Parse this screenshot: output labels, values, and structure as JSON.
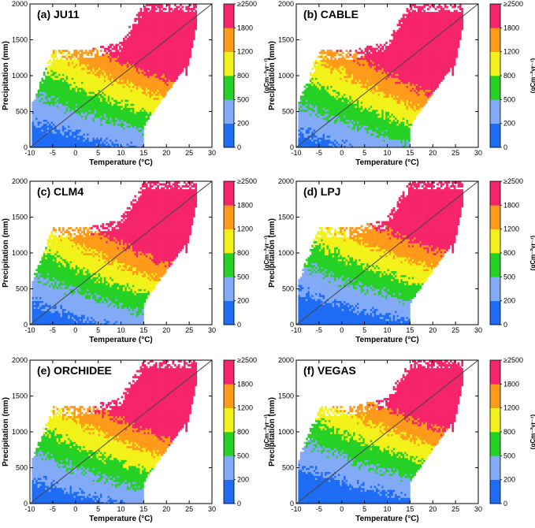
{
  "figure": {
    "temperature_label": "Temperature (",
    "temperature_unit": "°C)",
    "precipitation_label": "Precipitation (mm)",
    "colorbar_unit": "(gCm⁻²yr⁻¹)"
  },
  "chart_data": [
    {
      "type": "heatmap",
      "title": "(a) JU11",
      "xlabel": "Temperature (°C)",
      "ylabel": "Precipitation (mm)",
      "xlim": [
        -10,
        30
      ],
      "ylim": [
        0,
        2000
      ],
      "xticks": [
        -10,
        -5,
        0,
        5,
        10,
        15,
        20,
        25,
        30
      ],
      "yticks": [
        0,
        500,
        1000,
        1500,
        2000
      ],
      "colorbar": {
        "levels": [
          0,
          200,
          500,
          800,
          1200,
          1800,
          2500
        ],
        "tick_labels": [
          "0",
          "200",
          "500",
          "800",
          "1200",
          "1800",
          "≥2500"
        ],
        "colors": [
          "#1f6cf5",
          "#82aaf7",
          "#26d126",
          "#f2f21a",
          "#ff9a1a",
          "#f5246b"
        ],
        "unit": "(gCm⁻²yr⁻¹)"
      },
      "diagonal_line": true
    },
    {
      "type": "heatmap",
      "title": "(b) CABLE",
      "xlabel": "Temperature (°C)",
      "ylabel": "Precipitation (mm)",
      "xlim": [
        -10,
        30
      ],
      "ylim": [
        0,
        2000
      ],
      "xticks": [
        -10,
        -5,
        0,
        5,
        10,
        15,
        20,
        25,
        30
      ],
      "yticks": [
        0,
        500,
        1000,
        1500,
        2000
      ],
      "colorbar": {
        "levels": [
          0,
          200,
          500,
          800,
          1200,
          1800,
          2500
        ],
        "tick_labels": [
          "0",
          "200",
          "500",
          "800",
          "1200",
          "1800",
          "≥2500"
        ],
        "colors": [
          "#1f6cf5",
          "#82aaf7",
          "#26d126",
          "#f2f21a",
          "#ff9a1a",
          "#f5246b"
        ],
        "unit": "(gCm⁻²yr⁻¹)"
      },
      "diagonal_line": true
    },
    {
      "type": "heatmap",
      "title": "(c) CLM4",
      "xlabel": "Temperature (°C)",
      "ylabel": "Precipitation (mm)",
      "xlim": [
        -10,
        30
      ],
      "ylim": [
        0,
        2000
      ],
      "xticks": [
        -10,
        -5,
        0,
        5,
        10,
        15,
        20,
        25,
        30
      ],
      "yticks": [
        0,
        500,
        1000,
        1500,
        2000
      ],
      "colorbar": {
        "levels": [
          0,
          200,
          500,
          800,
          1200,
          1800,
          2500
        ],
        "tick_labels": [
          "0",
          "200",
          "500",
          "800",
          "1200",
          "1800",
          "≥2500"
        ],
        "colors": [
          "#1f6cf5",
          "#82aaf7",
          "#26d126",
          "#f2f21a",
          "#ff9a1a",
          "#f5246b"
        ],
        "unit": "(gCm⁻²yr⁻¹)"
      },
      "diagonal_line": true
    },
    {
      "type": "heatmap",
      "title": "(d) LPJ",
      "xlabel": "Temperature (°C)",
      "ylabel": "Precipitation (mm)",
      "xlim": [
        -10,
        30
      ],
      "ylim": [
        0,
        2000
      ],
      "xticks": [
        -10,
        -5,
        0,
        5,
        10,
        15,
        20,
        25,
        30
      ],
      "yticks": [
        0,
        500,
        1000,
        1500,
        2000
      ],
      "colorbar": {
        "levels": [
          0,
          200,
          500,
          800,
          1200,
          1800,
          2500
        ],
        "tick_labels": [
          "0",
          "200",
          "500",
          "800",
          "1200",
          "1800",
          "≥2500"
        ],
        "colors": [
          "#1f6cf5",
          "#82aaf7",
          "#26d126",
          "#f2f21a",
          "#ff9a1a",
          "#f5246b"
        ],
        "unit": "(gCm⁻²yr⁻¹)"
      },
      "diagonal_line": true
    },
    {
      "type": "heatmap",
      "title": "(e) ORCHIDEE",
      "xlabel": "Temperature (°C)",
      "ylabel": "Precipitation (mm)",
      "xlim": [
        -10,
        30
      ],
      "ylim": [
        0,
        2000
      ],
      "xticks": [
        -10,
        -5,
        0,
        5,
        10,
        15,
        20,
        25,
        30
      ],
      "yticks": [
        0,
        500,
        1000,
        1500,
        2000
      ],
      "colorbar": {
        "levels": [
          0,
          200,
          500,
          800,
          1200,
          1800,
          2500
        ],
        "tick_labels": [
          "0",
          "200",
          "500",
          "800",
          "1200",
          "1800",
          "≥2500"
        ],
        "colors": [
          "#1f6cf5",
          "#82aaf7",
          "#26d126",
          "#f2f21a",
          "#ff9a1a",
          "#f5246b"
        ],
        "unit": "(gCm⁻²yr⁻¹)"
      },
      "diagonal_line": true
    },
    {
      "type": "heatmap",
      "title": "(f) VEGAS",
      "xlabel": "Temperature (°C)",
      "ylabel": "Precipitation (mm)",
      "xlim": [
        -10,
        30
      ],
      "ylim": [
        0,
        2000
      ],
      "xticks": [
        -10,
        -5,
        0,
        5,
        10,
        15,
        20,
        25,
        30
      ],
      "yticks": [
        0,
        500,
        1000,
        1500,
        2000
      ],
      "colorbar": {
        "levels": [
          0,
          200,
          500,
          800,
          1200,
          1800,
          2500
        ],
        "tick_labels": [
          "0",
          "200",
          "500",
          "800",
          "1200",
          "1800",
          "≥2500"
        ],
        "colors": [
          "#1f6cf5",
          "#82aaf7",
          "#26d126",
          "#f2f21a",
          "#ff9a1a",
          "#f5246b"
        ],
        "unit": "(gCm⁻²yr⁻¹)"
      },
      "diagonal_line": true
    }
  ]
}
